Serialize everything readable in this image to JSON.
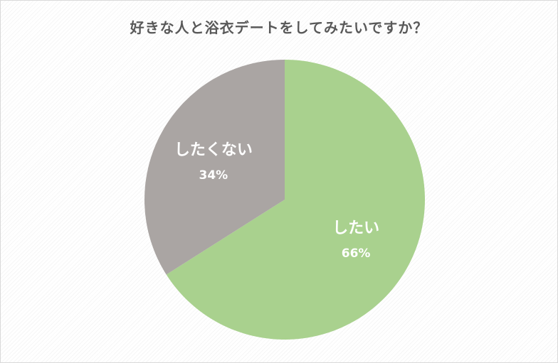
{
  "chart_data": {
    "type": "pie",
    "title": "好きな人と浴衣デートをしてみたいですか？",
    "categories": [
      "したい",
      "したくない"
    ],
    "values": [
      66,
      34
    ],
    "labels": [
      "66%",
      "34%"
    ],
    "colors": [
      "#a9d18e",
      "#aaa5a3"
    ],
    "legend": "none"
  }
}
